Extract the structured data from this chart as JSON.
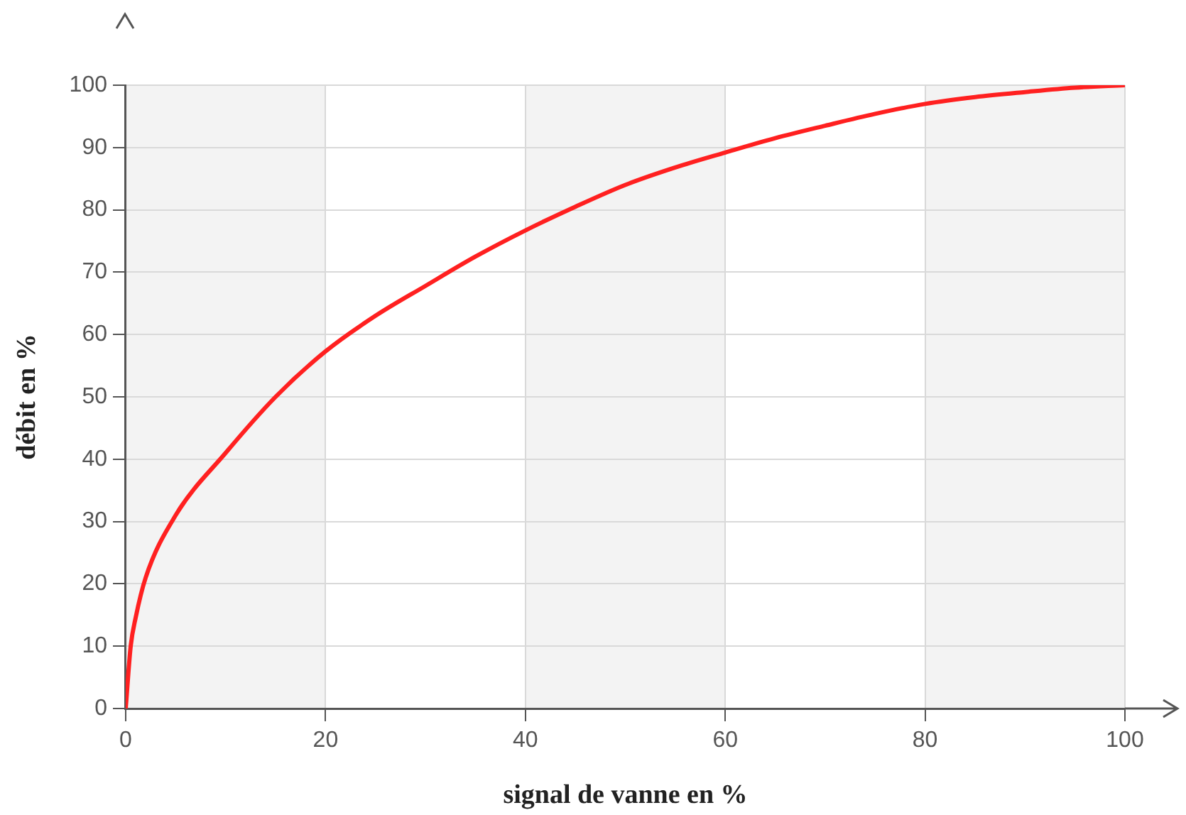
{
  "chart_data": {
    "type": "line",
    "xlabel": "signal de vanne en %",
    "ylabel": "débit en %",
    "x": [
      0,
      0.5,
      1,
      2,
      5,
      10,
      15,
      20,
      25,
      30,
      35,
      40,
      45,
      50,
      55,
      60,
      65,
      70,
      75,
      80,
      85,
      90,
      95,
      100
    ],
    "series": [
      {
        "color": "#ff2020",
        "values": [
          0,
          10,
          14.6,
          21,
          31,
          41,
          50,
          57.3,
          63,
          67.8,
          72.5,
          76.7,
          80.5,
          84,
          86.8,
          89.2,
          91.5,
          93.5,
          95.4,
          97,
          98.1,
          98.9,
          99.6,
          100
        ]
      }
    ],
    "xlim": [
      0,
      100
    ],
    "xticks": [
      0,
      20,
      40,
      60,
      80,
      100
    ],
    "ylim": [
      0,
      100
    ],
    "yticks": [
      0,
      10,
      20,
      30,
      40,
      50,
      60,
      70,
      80,
      90,
      100
    ],
    "bands": [
      {
        "axis": "x",
        "from": 0,
        "to": 20,
        "color": "#f3f3f3"
      },
      {
        "axis": "x",
        "from": 40,
        "to": 60,
        "color": "#f3f3f3"
      },
      {
        "axis": "x",
        "from": 80,
        "to": 100,
        "color": "#f3f3f3"
      }
    ],
    "grid": true,
    "legend": false,
    "marker": "none",
    "line_style": "solid"
  }
}
